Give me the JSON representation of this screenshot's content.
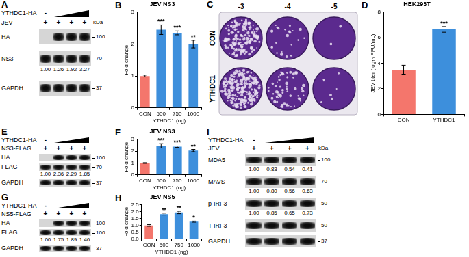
{
  "figure": {
    "blots": [
      {
        "panel": "A",
        "kda_label": "kDa",
        "treatments": [
          {
            "label": "YTHDC1-HA",
            "lanes": [
              "-"
            ],
            "wedge": true
          },
          {
            "label": "JEV",
            "lanes": [
              "+",
              "+",
              "+",
              "+"
            ]
          }
        ],
        "bands": [
          {
            "label": "HA",
            "kda": 100,
            "present": [
              false,
              true,
              true,
              true
            ]
          },
          {
            "label": "NS3",
            "kda": 70,
            "present": [
              true,
              true,
              true,
              true
            ],
            "quant": [
              "1.00",
              "1.26",
              "1.92",
              "3.27"
            ]
          },
          {
            "label": "GAPDH",
            "kda": 37,
            "present": [
              true,
              true,
              true,
              true
            ]
          }
        ]
      },
      {
        "panel": "E",
        "treatments": [
          {
            "label": "YTHDC1-HA",
            "lanes": [
              "-"
            ],
            "wedge": true
          },
          {
            "label": "NS3-FLAG",
            "lanes": [
              "+",
              "+",
              "+",
              "+"
            ]
          }
        ],
        "bands": [
          {
            "label": "HA",
            "kda": 100,
            "present": [
              false,
              true,
              true,
              true
            ]
          },
          {
            "label": "FLAG",
            "kda": 70,
            "present": [
              true,
              true,
              true,
              true
            ],
            "quant": [
              "1.00",
              "2.36",
              "2.29",
              "1.85"
            ]
          },
          {
            "label": "GAPDH",
            "kda": 37,
            "present": [
              true,
              true,
              true,
              true
            ]
          }
        ]
      },
      {
        "panel": "G",
        "treatments": [
          {
            "label": "YTHDC1-HA",
            "lanes": [
              "-"
            ],
            "wedge": true
          },
          {
            "label": "NS5-FLAG",
            "lanes": [
              "+",
              "+",
              "+",
              "+"
            ]
          }
        ],
        "bands": [
          {
            "label": "HA",
            "kda": 100,
            "present": [
              false,
              true,
              true,
              true
            ]
          },
          {
            "label": "FLAG",
            "kda": 100,
            "present": [
              true,
              true,
              true,
              true
            ],
            "quant": [
              "1.00",
              "1.75",
              "1.89",
              "1.46"
            ]
          },
          {
            "label": "GAPDH",
            "kda": 37,
            "present": [
              true,
              true,
              true,
              true
            ]
          }
        ]
      },
      {
        "panel": "I",
        "kda_label": "kDa",
        "treatments": [
          {
            "label": "YTHDC1-HA",
            "lanes": [
              "-"
            ],
            "wedge": true
          },
          {
            "label": "JEV",
            "lanes": [
              "+",
              "+",
              "+",
              "+"
            ]
          }
        ],
        "bands": [
          {
            "label": "MDA5",
            "kda": 100,
            "present": [
              true,
              true,
              true,
              true
            ],
            "quant": [
              "1.00",
              "0.83",
              "0.54",
              "0.41"
            ]
          },
          {
            "label": "MAVS",
            "kda": 70,
            "present": [
              true,
              true,
              true,
              true
            ],
            "quant": [
              "1.00",
              "0.80",
              "0.56",
              "0.63"
            ]
          },
          {
            "label": "p-IRF3",
            "kda": 50,
            "present": [
              true,
              true,
              true,
              true
            ],
            "quant": [
              "1.00",
              "0.85",
              "0.65",
              "0.73"
            ]
          },
          {
            "label": "T-IRF3",
            "kda": 50,
            "present": [
              true,
              true,
              true,
              true
            ]
          },
          {
            "label": "GAPDH",
            "kda": 37,
            "present": [
              true,
              true,
              true,
              true
            ]
          }
        ]
      }
    ],
    "plaque_assay": {
      "panel": "C",
      "dilutions": [
        "-3",
        "-4",
        "-5"
      ],
      "groups": [
        "CON",
        "YTHDC1"
      ]
    }
  },
  "chart_data": [
    {
      "panel": "B",
      "type": "bar",
      "title": "JEV NS3",
      "x_label": "YTHDC1 (ng)",
      "y_label": "Fold change",
      "categories": [
        "CON",
        "500",
        "750",
        "1000"
      ],
      "values": [
        1.0,
        2.45,
        2.35,
        2.0
      ],
      "errors": [
        0.03,
        0.15,
        0.06,
        0.12
      ],
      "annotations": [
        null,
        "***",
        "***",
        "**"
      ],
      "colors": [
        "#f4766c",
        "#3d8fdc",
        "#3d8fdc",
        "#3d8fdc"
      ],
      "ylim": [
        0,
        3
      ],
      "yticks": [
        0,
        1,
        2,
        3
      ],
      "grid": false
    },
    {
      "panel": "D",
      "type": "bar",
      "title": "HEK293T",
      "y_label": "JEV titer (log₁₀ PFU/mL)",
      "categories": [
        "CON",
        "YTHDC1"
      ],
      "values": [
        3.5,
        6.65
      ],
      "errors": [
        0.35,
        0.22
      ],
      "annotations": [
        null,
        "***"
      ],
      "colors": [
        "#f4766c",
        "#3d8fdc"
      ],
      "ylim": [
        0,
        8
      ],
      "yticks": [
        0,
        2,
        4,
        6,
        8
      ],
      "grid": false
    },
    {
      "panel": "F",
      "type": "bar",
      "title": "JEV NS3",
      "x_label": "YTHDC1 (ng)",
      "y_label": "Fold change",
      "categories": [
        "CON",
        "500",
        "750",
        "1000"
      ],
      "values": [
        1.0,
        2.45,
        2.38,
        2.05
      ],
      "errors": [
        0.03,
        0.18,
        0.06,
        0.1
      ],
      "annotations": [
        null,
        "***",
        "***",
        "**"
      ],
      "colors": [
        "#f4766c",
        "#3d8fdc",
        "#3d8fdc",
        "#3d8fdc"
      ],
      "ylim": [
        0,
        3
      ],
      "yticks": [
        0,
        1,
        2,
        3
      ],
      "grid": false
    },
    {
      "panel": "H",
      "type": "bar",
      "title": "JEV NS5",
      "x_label": "YTHDC1 (ng)",
      "y_label": "Fold change",
      "categories": [
        "CON",
        "500",
        "750",
        "1000"
      ],
      "values": [
        1.0,
        1.83,
        1.95,
        1.28
      ],
      "errors": [
        0.06,
        0.07,
        0.09,
        0.04
      ],
      "annotations": [
        null,
        "**",
        "**",
        "*"
      ],
      "colors": [
        "#f4766c",
        "#3d8fdc",
        "#3d8fdc",
        "#3d8fdc"
      ],
      "ylim": [
        0,
        2.5
      ],
      "yticks": [
        {
          "value": 0,
          "label": "0.0"
        },
        {
          "value": 0.5,
          "label": "0.5"
        },
        {
          "value": 1,
          "label": "1.0"
        },
        {
          "value": 1.5,
          "label": "1.5"
        },
        {
          "value": 2,
          "label": "2.0"
        },
        {
          "value": 2.5,
          "label": "2.5"
        }
      ],
      "grid": false
    }
  ]
}
